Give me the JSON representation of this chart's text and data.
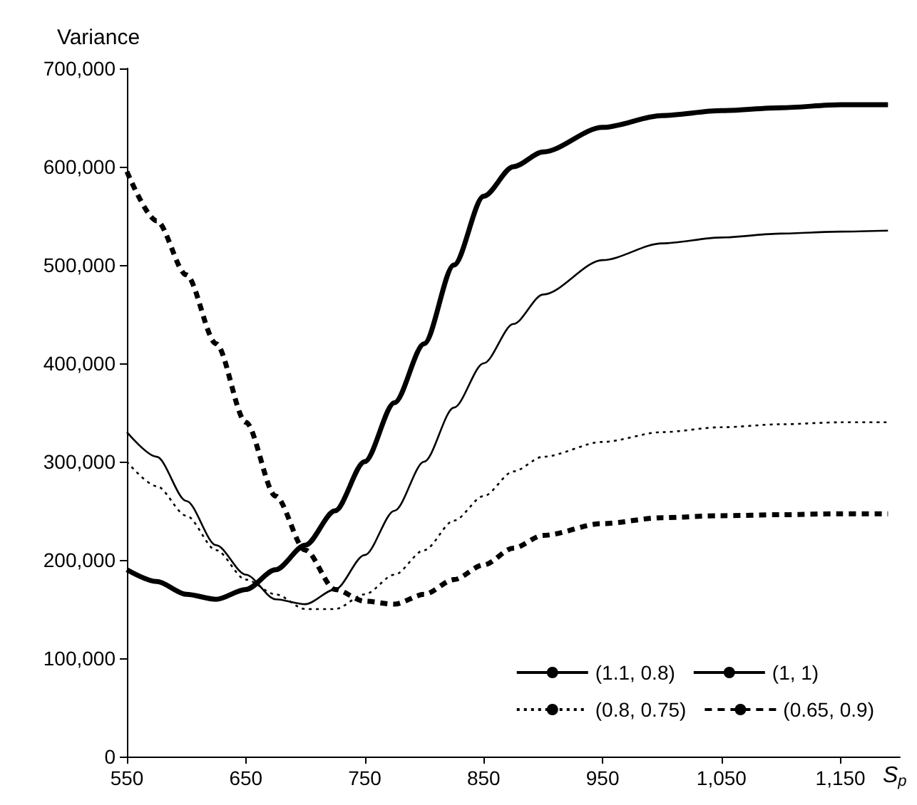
{
  "chart_data": {
    "type": "line",
    "xlabel": "S$_{p}$",
    "ylabel": "Variance",
    "x": [
      550,
      575,
      600,
      625,
      650,
      675,
      700,
      725,
      750,
      775,
      800,
      825,
      850,
      875,
      900,
      950,
      1000,
      1050,
      1100,
      1150,
      1190
    ],
    "series": [
      {
        "name": "(1.1, 0.8)",
        "color": "#000000",
        "line_style": "solid",
        "values": [
          190000,
          178000,
          165000,
          160000,
          170000,
          190000,
          215000,
          250000,
          300000,
          360000,
          420000,
          500000,
          570000,
          600000,
          615000,
          640000,
          652000,
          657000,
          660000,
          663000,
          663000
        ]
      },
      {
        "name": "(1, 1)",
        "color": "#000000",
        "line_style": "solid",
        "values": [
          330000,
          305000,
          260000,
          215000,
          185000,
          160000,
          155000,
          170000,
          205000,
          250000,
          300000,
          355000,
          400000,
          440000,
          470000,
          505000,
          522000,
          528000,
          532000,
          534000,
          535000
        ]
      },
      {
        "name": "(0.8, 0.75)",
        "color": "#000000",
        "line_style": "dotted",
        "values": [
          300000,
          275000,
          245000,
          210000,
          180000,
          165000,
          150000,
          150000,
          165000,
          185000,
          210000,
          240000,
          265000,
          290000,
          305000,
          320000,
          330000,
          335000,
          338000,
          340000,
          340000
        ]
      },
      {
        "name": "(0.65, 0.9)",
        "color": "#000000",
        "line_style": "dashed",
        "values": [
          595000,
          545000,
          490000,
          420000,
          340000,
          265000,
          210000,
          170000,
          158000,
          155000,
          165000,
          180000,
          195000,
          212000,
          225000,
          237000,
          243000,
          245000,
          246000,
          247000,
          247000
        ]
      }
    ],
    "xlim": [
      550,
      1200
    ],
    "xticks": [
      550,
      650,
      750,
      850,
      950,
      {
        "value": 1050,
        "label": "1,050"
      },
      {
        "value": 1150,
        "label": "1,150"
      }
    ],
    "ylim": [
      0,
      700000
    ],
    "yticks": [
      0,
      {
        "value": 100000,
        "label": "100,000"
      },
      {
        "value": 200000,
        "label": "200,000"
      },
      {
        "value": 300000,
        "label": "300,000"
      },
      {
        "value": 400000,
        "label": "400,000"
      },
      {
        "value": 500000,
        "label": "500,000"
      },
      {
        "value": 600000,
        "label": "600,000"
      },
      {
        "value": 700000,
        "label": "700,000"
      }
    ],
    "grid": false,
    "legend": "bottom right",
    "marker": "none"
  }
}
